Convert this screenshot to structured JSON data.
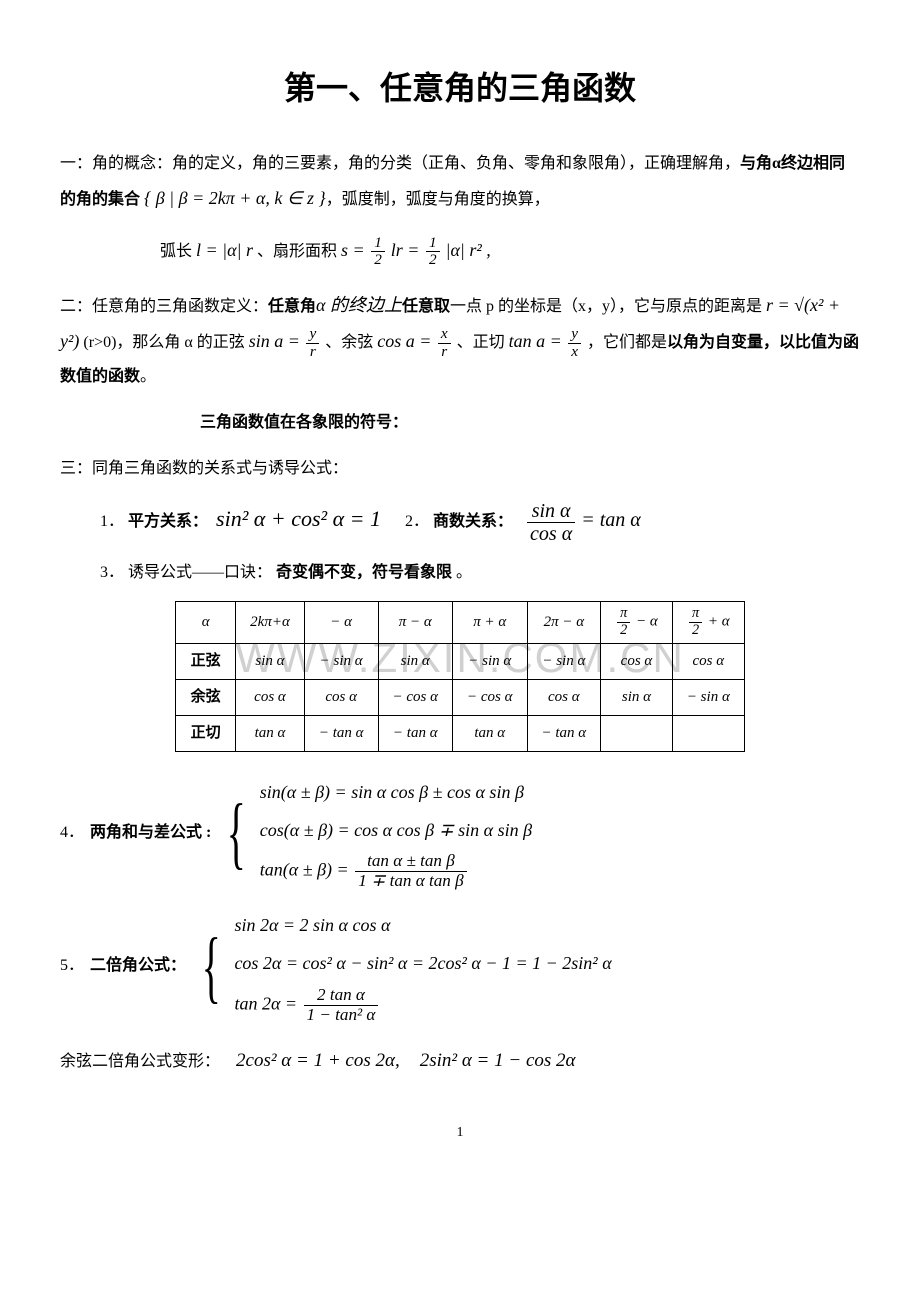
{
  "title": "第一、任意角的三角函数",
  "section1": {
    "label": "一：角的概念：",
    "body": "角的定义，角的三要素，角的分类（正角、负角、零角和象限角），正确理解角，",
    "bold_phrase": "与角α终边相同的角的集合",
    "set_notation": "{ β | β = 2kπ + α, k ∈ z }",
    "tail": "，弧度制，弧度与角度的换算，"
  },
  "arc_formula": {
    "arc_label": "弧长",
    "arc_expr_lhs": "l = |α| r",
    "sector_label": "、扇形面积",
    "sector_expr": "s = ",
    "half1_num": "1",
    "half1_den": "2",
    "mid": " lr = ",
    "half2_num": "1",
    "half2_den": "2",
    "tail": " |α| r² ,"
  },
  "section2": {
    "label": "二：任意角的三角函数定义：",
    "bold1": "任意角",
    "mid1": "α 的终边上",
    "bold2": "任意取",
    "mid2": "一点 p 的坐标是（x，y），它与原点的距离是",
    "r_expr": "r = √(x² + y²)",
    "r_cond": " (r>0)，那么角 α 的正弦 ",
    "sin_lhs": "sin a = ",
    "sin_num": "y",
    "sin_den": "r",
    "cos_label": "、余弦 ",
    "cos_lhs": "cos a = ",
    "cos_num": "x",
    "cos_den": "r",
    "tan_label": "、正切 ",
    "tan_lhs": "tan a = ",
    "tan_num": "y",
    "tan_den": "x",
    "tail1": "，它们都是",
    "bold3": "以角为自变量，以比值为函数值的函数",
    "tail2": "。"
  },
  "sign_heading": "三角函数值在各象限的符号：",
  "section3_label": "三：同角三角函数的关系式与诱导公式：",
  "rel1": {
    "num": "1．",
    "label": "平方关系：",
    "expr": "sin² α + cos² α = 1"
  },
  "rel2": {
    "num": "2．",
    "label": "商数关系：",
    "frac_num": "sin α",
    "frac_den": "cos α",
    "eq": " = tan α"
  },
  "rel3": {
    "num": "3．",
    "label": "诱导公式——口诀：",
    "bold": "奇变偶不变，符号看象限",
    "tail": "。"
  },
  "table": {
    "headers": [
      "α",
      "2kπ+α",
      "− α",
      "π − α",
      "π + α",
      "2π − α",
      "π/2 − α",
      "π/2 + α"
    ],
    "hdr_pi2m_num": "π",
    "hdr_pi2m_den": "2",
    "hdr_pi2m_tail": " − α",
    "hdr_pi2p_num": "π",
    "hdr_pi2p_den": "2",
    "hdr_pi2p_tail": " + α",
    "rows": [
      {
        "label": "正弦",
        "cells": [
          "sin α",
          "− sin α",
          "sin α",
          "− sin α",
          "− sin α",
          "cos α",
          "cos α"
        ]
      },
      {
        "label": "余弦",
        "cells": [
          "cos α",
          "cos α",
          "− cos α",
          "− cos α",
          "cos α",
          "sin α",
          "− sin α"
        ]
      },
      {
        "label": "正切",
        "cells": [
          "tan α",
          "− tan α",
          "− tan α",
          "tan α",
          "− tan α",
          "",
          ""
        ]
      }
    ]
  },
  "sumdiff": {
    "num": "4．",
    "label": "两角和与差公式  :",
    "line1": "sin(α ± β) = sin α cos β ± cos α sin β",
    "line2": "cos(α ± β) = cos α cos β ∓ sin α sin β",
    "line3_lhs": "tan(α ± β) = ",
    "line3_num": "tan α ± tan β",
    "line3_den": "1 ∓ tan α tan β"
  },
  "double": {
    "num": "5．",
    "label": "二倍角公式：",
    "line1": "sin 2α = 2 sin α cos α",
    "line2": "cos 2α = cos² α − sin² α = 2cos² α − 1 = 1 − 2sin² α",
    "line3_lhs": "tan 2α = ",
    "line3_num": "2 tan α",
    "line3_den": "1 − tan² α"
  },
  "cosdouble_variant": {
    "label": "余弦二倍角公式变形：",
    "e1": "2cos² α = 1 + cos 2α,",
    "e2": "2sin² α = 1 − cos 2α"
  },
  "watermark": "WWW.ZIXIN.COM.CN",
  "pagenum": "1"
}
